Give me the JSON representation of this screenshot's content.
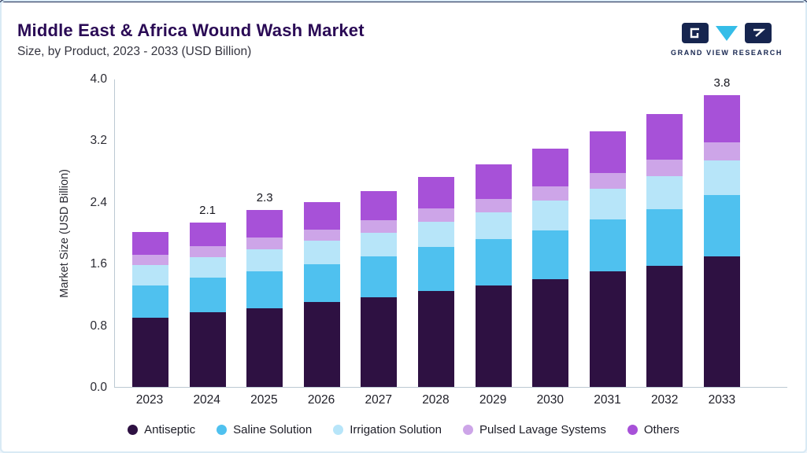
{
  "header": {
    "title": "Middle East & Africa Wound Wash Market",
    "subtitle": "Size, by Product, 2023 - 2033 (USD Billion)",
    "logo_text": "GRAND VIEW RESEARCH"
  },
  "colors": {
    "accent_navy": "#16254f",
    "accent_cyan": "#35bde8",
    "title_purple": "#2a0a55"
  },
  "chart_data": {
    "type": "bar",
    "stacked": true,
    "title": "Middle East & Africa Wound Wash Market Size, by Product, 2023 - 2033 (USD Billion)",
    "xlabel": "",
    "ylabel": "Market Size (USD Billion)",
    "ylim": [
      0,
      4.0
    ],
    "yticks": [
      "0.0",
      "0.8",
      "1.6",
      "2.4",
      "3.2",
      "4.0"
    ],
    "grid": false,
    "legend_position": "bottom",
    "categories": [
      "2023",
      "2024",
      "2025",
      "2026",
      "2027",
      "2028",
      "2029",
      "2030",
      "2031",
      "2032",
      "2033"
    ],
    "series": [
      {
        "name": "Antiseptic",
        "color": "#2e1142",
        "values": [
          0.9,
          0.97,
          1.02,
          1.1,
          1.17,
          1.25,
          1.32,
          1.4,
          1.5,
          1.58,
          1.7
        ]
      },
      {
        "name": "Saline Solution",
        "color": "#4fc1ef",
        "values": [
          0.42,
          0.45,
          0.48,
          0.5,
          0.53,
          0.57,
          0.6,
          0.64,
          0.68,
          0.73,
          0.8
        ]
      },
      {
        "name": "Irrigation Solution",
        "color": "#b7e5f9",
        "values": [
          0.27,
          0.27,
          0.29,
          0.3,
          0.31,
          0.33,
          0.35,
          0.38,
          0.4,
          0.43,
          0.45
        ]
      },
      {
        "name": "Pulsed Lavage Systems",
        "color": "#cda5e8",
        "values": [
          0.13,
          0.14,
          0.15,
          0.15,
          0.16,
          0.17,
          0.18,
          0.19,
          0.2,
          0.22,
          0.23
        ]
      },
      {
        "name": "Others",
        "color": "#a751d8",
        "values": [
          0.3,
          0.31,
          0.36,
          0.35,
          0.38,
          0.41,
          0.45,
          0.49,
          0.54,
          0.59,
          0.62
        ]
      }
    ],
    "totals": [
      2.02,
      2.14,
      2.3,
      2.4,
      2.55,
      2.73,
      2.9,
      3.1,
      3.32,
      3.55,
      3.8
    ],
    "total_labels": {
      "2024": "2.1",
      "2025": "2.3",
      "2033": "3.8"
    }
  }
}
